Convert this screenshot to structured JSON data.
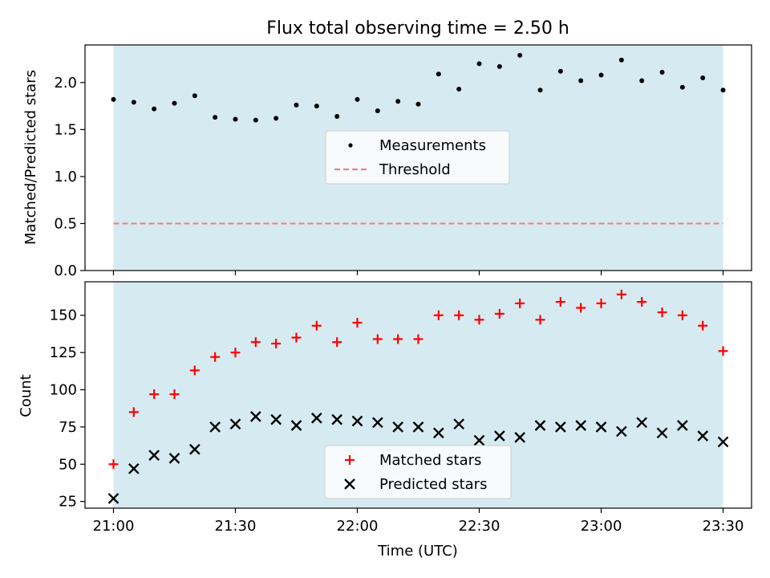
{
  "figure": {
    "title": "Flux total observing time = 2.50 h",
    "shaded_color": "#d4eaf0"
  },
  "chart_data": [
    {
      "type": "scatter",
      "title": "Flux total observing time = 2.50 h",
      "xlabel": "",
      "ylabel": "Matched/Predicted stars",
      "xlim": [
        "20:53",
        "23:37"
      ],
      "ylim": [
        0,
        2.4
      ],
      "yticks": [
        0.0,
        0.5,
        1.0,
        1.5,
        2.0
      ],
      "ytick_labels": [
        "0.0",
        "0.5",
        "1.0",
        "1.5",
        "2.0"
      ],
      "shaded_span": [
        "21:00",
        "23:30"
      ],
      "legend_placement": "center",
      "series": [
        {
          "name": "Measurements",
          "color": "#000000",
          "marker": "dot",
          "x": [
            "21:00",
            "21:05",
            "21:10",
            "21:15",
            "21:20",
            "21:25",
            "21:30",
            "21:35",
            "21:40",
            "21:45",
            "21:50",
            "21:55",
            "22:00",
            "22:05",
            "22:10",
            "22:15",
            "22:20",
            "22:25",
            "22:30",
            "22:35",
            "22:40",
            "22:45",
            "22:50",
            "22:55",
            "23:00",
            "23:05",
            "23:10",
            "23:15",
            "23:20",
            "23:25",
            "23:30"
          ],
          "y": [
            1.82,
            1.79,
            1.72,
            1.78,
            1.86,
            1.63,
            1.61,
            1.6,
            1.62,
            1.76,
            1.75,
            1.64,
            1.82,
            1.7,
            1.8,
            1.77,
            2.09,
            1.93,
            2.2,
            2.17,
            2.29,
            1.92,
            2.12,
            2.02,
            2.08,
            2.24,
            2.02,
            2.11,
            1.95,
            2.05,
            1.92
          ]
        },
        {
          "name": "Threshold",
          "color": "#f08080",
          "style": "dashed",
          "x": [
            "21:00",
            "23:30"
          ],
          "y": [
            0.5,
            0.5
          ]
        }
      ]
    },
    {
      "type": "scatter",
      "xlabel": "Time (UTC)",
      "ylabel": "Count",
      "xlim": [
        "20:53",
        "23:37"
      ],
      "ylim": [
        20.5,
        172.5
      ],
      "xticks": [
        "21:00",
        "21:30",
        "22:00",
        "22:30",
        "23:00",
        "23:30"
      ],
      "xtick_labels": [
        "21:00",
        "21:30",
        "22:00",
        "22:30",
        "23:00",
        "23:30"
      ],
      "yticks": [
        25,
        50,
        75,
        100,
        125,
        150
      ],
      "ytick_labels": [
        "25",
        "50",
        "75",
        "100",
        "125",
        "150"
      ],
      "shaded_span": [
        "21:00",
        "23:30"
      ],
      "legend_placement": "lower center",
      "series": [
        {
          "name": "Matched stars",
          "color": "#ff0000",
          "marker": "plus",
          "x": [
            "21:00",
            "21:05",
            "21:10",
            "21:15",
            "21:20",
            "21:25",
            "21:30",
            "21:35",
            "21:40",
            "21:45",
            "21:50",
            "21:55",
            "22:00",
            "22:05",
            "22:10",
            "22:15",
            "22:20",
            "22:25",
            "22:30",
            "22:35",
            "22:40",
            "22:45",
            "22:50",
            "22:55",
            "23:00",
            "23:05",
            "23:10",
            "23:15",
            "23:20",
            "23:25",
            "23:30"
          ],
          "y": [
            50,
            85,
            97,
            97,
            113,
            122,
            125,
            132,
            131,
            135,
            143,
            132,
            145,
            134,
            134,
            134,
            150,
            150,
            147,
            151,
            158,
            147,
            159,
            155,
            158,
            164,
            159,
            152,
            150,
            143,
            126
          ]
        },
        {
          "name": "Predicted stars",
          "color": "#000000",
          "marker": "x",
          "x": [
            "21:00",
            "21:05",
            "21:10",
            "21:15",
            "21:20",
            "21:25",
            "21:30",
            "21:35",
            "21:40",
            "21:45",
            "21:50",
            "21:55",
            "22:00",
            "22:05",
            "22:10",
            "22:15",
            "22:20",
            "22:25",
            "22:30",
            "22:35",
            "22:40",
            "22:45",
            "22:50",
            "22:55",
            "23:00",
            "23:05",
            "23:10",
            "23:15",
            "23:20",
            "23:25",
            "23:30"
          ],
          "y": [
            27,
            47,
            56,
            54,
            60,
            75,
            77,
            82,
            80,
            76,
            81,
            80,
            79,
            78,
            75,
            75,
            71,
            77,
            66,
            69,
            68,
            76,
            75,
            76,
            75,
            72,
            78,
            71,
            76,
            69,
            65
          ]
        }
      ]
    }
  ]
}
